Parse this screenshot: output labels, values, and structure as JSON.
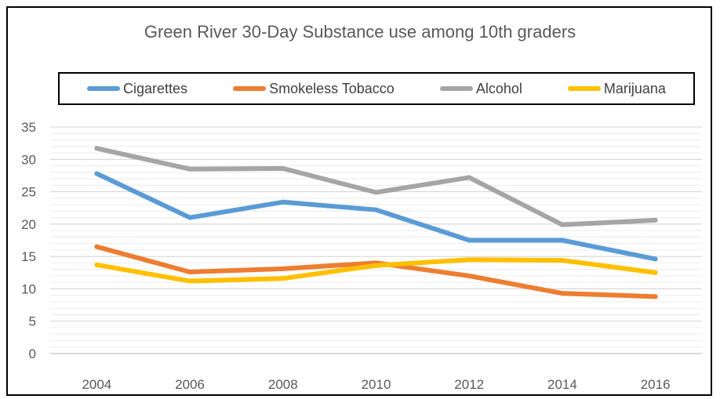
{
  "chart_data": {
    "type": "line",
    "title": "Green River 30-Day Substance use among 10th graders",
    "xlabel": "",
    "ylabel": "",
    "categories": [
      "2004",
      "2006",
      "2008",
      "2010",
      "2012",
      "2014",
      "2016"
    ],
    "ylim": [
      0,
      35
    ],
    "yticks": [
      "0",
      "5",
      "10",
      "15",
      "20",
      "25",
      "30",
      "35"
    ],
    "minor_gridlines": true,
    "legend_position": "top",
    "series": [
      {
        "name": "Cigarettes",
        "color": "#5B9BD5",
        "values": [
          27.8,
          21.0,
          23.4,
          22.2,
          17.5,
          17.5,
          14.6
        ]
      },
      {
        "name": "Smokeless Tobacco",
        "color": "#ED7D31",
        "values": [
          16.5,
          12.6,
          13.1,
          14.0,
          12.0,
          9.3,
          8.8
        ]
      },
      {
        "name": "Alcohol",
        "color": "#A5A5A5",
        "values": [
          31.7,
          28.5,
          28.6,
          24.9,
          27.2,
          19.9,
          20.6
        ]
      },
      {
        "name": "Marijuana",
        "color": "#FFC000",
        "values": [
          13.7,
          11.2,
          11.6,
          13.6,
          14.5,
          14.4,
          12.5
        ]
      }
    ]
  }
}
